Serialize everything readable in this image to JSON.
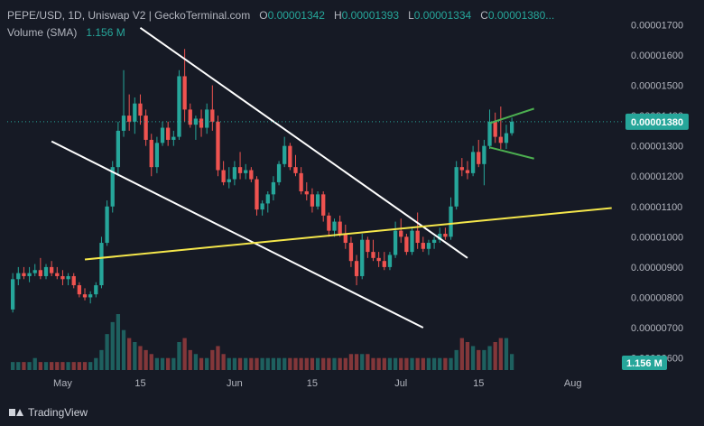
{
  "legend": {
    "title": "PEPE/USD, 1D, Uniswap V2 | GeckoTerminal.com",
    "o_label": "O",
    "o_value": "0.00001342",
    "h_label": "H",
    "h_value": "0.00001393",
    "l_label": "L",
    "l_value": "0.00001334",
    "c_label": "C",
    "c_value": "0.00001380...",
    "volume_label": "Volume (SMA)",
    "volume_value": "1.156 M"
  },
  "footer": {
    "brand": "TradingView"
  },
  "colors": {
    "up": "#26a69a",
    "down": "#ef5350",
    "background": "#161a25",
    "trend_white": "#ffffff",
    "trend_yellow": "#f5e74b",
    "flag_green": "#4caf50"
  },
  "chart_data": {
    "type": "candlestick",
    "title": "PEPE/USD, 1D, Uniswap V2 | GeckoTerminal.com",
    "x_tick_labels": [
      "May",
      "15",
      "Jun",
      "15",
      "Jul",
      "15",
      "Aug"
    ],
    "y_tick_labels": [
      "0.00001700",
      "0.00001600",
      "0.00001500",
      "0.00001400",
      "0.00001300",
      "0.00001200",
      "0.00001100",
      "0.00001000",
      "0.00000900",
      "0.00000800",
      "0.00000700",
      "0.00000600"
    ],
    "ylim": [
      5.6e-06,
      1.74e-05
    ],
    "grid": false,
    "current_price_label": "0.00001380",
    "volume_label": "1.156 M",
    "candles": [
      {
        "date": "2023-04-22",
        "o": 7.6e-06,
        "h": 8.8e-06,
        "l": 7.5e-06,
        "c": 8.6e-06
      },
      {
        "date": "2023-04-23",
        "o": 8.6e-06,
        "h": 9e-06,
        "l": 8.4e-06,
        "c": 8.8e-06
      },
      {
        "date": "2023-04-24",
        "o": 8.8e-06,
        "h": 9e-06,
        "l": 8.6e-06,
        "c": 8.7e-06
      },
      {
        "date": "2023-04-25",
        "o": 8.7e-06,
        "h": 9e-06,
        "l": 8.5e-06,
        "c": 8.8e-06
      },
      {
        "date": "2023-04-26",
        "o": 8.8e-06,
        "h": 9.1e-06,
        "l": 8.7e-06,
        "c": 8.9e-06
      },
      {
        "date": "2023-04-27",
        "o": 8.9e-06,
        "h": 9.3e-06,
        "l": 8.6e-06,
        "c": 8.7e-06
      },
      {
        "date": "2023-04-28",
        "o": 8.7e-06,
        "h": 9.1e-06,
        "l": 8.6e-06,
        "c": 9e-06
      },
      {
        "date": "2023-04-29",
        "o": 9e-06,
        "h": 9.2e-06,
        "l": 8.7e-06,
        "c": 8.8e-06
      },
      {
        "date": "2023-04-30",
        "o": 8.8e-06,
        "h": 9e-06,
        "l": 8.6e-06,
        "c": 8.7e-06
      },
      {
        "date": "2023-05-01",
        "o": 8.7e-06,
        "h": 8.9e-06,
        "l": 8.4e-06,
        "c": 8.6e-06
      },
      {
        "date": "2023-05-02",
        "o": 8.6e-06,
        "h": 8.8e-06,
        "l": 8.4e-06,
        "c": 8.7e-06
      },
      {
        "date": "2023-05-03",
        "o": 8.7e-06,
        "h": 8.8e-06,
        "l": 8.3e-06,
        "c": 8.4e-06
      },
      {
        "date": "2023-05-04",
        "o": 8.4e-06,
        "h": 8.5e-06,
        "l": 8e-06,
        "c": 8.1e-06
      },
      {
        "date": "2023-05-05",
        "o": 8.1e-06,
        "h": 8.3e-06,
        "l": 7.9e-06,
        "c": 8e-06
      },
      {
        "date": "2023-05-06",
        "o": 8e-06,
        "h": 8.2e-06,
        "l": 7.8e-06,
        "c": 8.1e-06
      },
      {
        "date": "2023-05-07",
        "o": 8.1e-06,
        "h": 8.5e-06,
        "l": 8e-06,
        "c": 8.4e-06
      },
      {
        "date": "2023-05-08",
        "o": 8.4e-06,
        "h": 1e-05,
        "l": 8.3e-06,
        "c": 9.8e-06
      },
      {
        "date": "2023-05-09",
        "o": 9.8e-06,
        "h": 1.12e-05,
        "l": 9.7e-06,
        "c": 1.1e-05
      },
      {
        "date": "2023-05-10",
        "o": 1.1e-05,
        "h": 1.25e-05,
        "l": 1.08e-05,
        "c": 1.23e-05
      },
      {
        "date": "2023-05-11",
        "o": 1.23e-05,
        "h": 1.38e-05,
        "l": 1.2e-05,
        "c": 1.35e-05
      },
      {
        "date": "2023-05-12",
        "o": 1.35e-05,
        "h": 1.55e-05,
        "l": 1.33e-05,
        "c": 1.4e-05
      },
      {
        "date": "2023-05-13",
        "o": 1.4e-05,
        "h": 1.47e-05,
        "l": 1.35e-05,
        "c": 1.38e-05
      },
      {
        "date": "2023-05-14",
        "o": 1.38e-05,
        "h": 1.46e-05,
        "l": 1.34e-05,
        "c": 1.44e-05
      },
      {
        "date": "2023-05-15",
        "o": 1.44e-05,
        "h": 1.47e-05,
        "l": 1.37e-05,
        "c": 1.4e-05
      },
      {
        "date": "2023-05-16",
        "o": 1.4e-05,
        "h": 1.42e-05,
        "l": 1.3e-05,
        "c": 1.32e-05
      },
      {
        "date": "2023-05-17",
        "o": 1.32e-05,
        "h": 1.34e-05,
        "l": 1.2e-05,
        "c": 1.23e-05
      },
      {
        "date": "2023-05-18",
        "o": 1.23e-05,
        "h": 1.33e-05,
        "l": 1.21e-05,
        "c": 1.31e-05
      },
      {
        "date": "2023-05-19",
        "o": 1.31e-05,
        "h": 1.38e-05,
        "l": 1.3e-05,
        "c": 1.36e-05
      },
      {
        "date": "2023-05-20",
        "o": 1.36e-05,
        "h": 1.38e-05,
        "l": 1.3e-05,
        "c": 1.32e-05
      },
      {
        "date": "2023-05-21",
        "o": 1.32e-05,
        "h": 1.35e-05,
        "l": 1.3e-05,
        "c": 1.33e-05
      },
      {
        "date": "2023-05-22",
        "o": 1.33e-05,
        "h": 1.55e-05,
        "l": 1.32e-05,
        "c": 1.53e-05
      },
      {
        "date": "2023-05-23",
        "o": 1.53e-05,
        "h": 1.62e-05,
        "l": 1.38e-05,
        "c": 1.42e-05
      },
      {
        "date": "2023-05-24",
        "o": 1.42e-05,
        "h": 1.44e-05,
        "l": 1.36e-05,
        "c": 1.37e-05
      },
      {
        "date": "2023-05-25",
        "o": 1.37e-05,
        "h": 1.4e-05,
        "l": 1.32e-05,
        "c": 1.39e-05
      },
      {
        "date": "2023-05-26",
        "o": 1.39e-05,
        "h": 1.42e-05,
        "l": 1.33e-05,
        "c": 1.36e-05
      },
      {
        "date": "2023-05-27",
        "o": 1.36e-05,
        "h": 1.44e-05,
        "l": 1.34e-05,
        "c": 1.42e-05
      },
      {
        "date": "2023-05-28",
        "o": 1.42e-05,
        "h": 1.5e-05,
        "l": 1.35e-05,
        "c": 1.38e-05
      },
      {
        "date": "2023-05-29",
        "o": 1.38e-05,
        "h": 1.4e-05,
        "l": 1.2e-05,
        "c": 1.22e-05
      },
      {
        "date": "2023-05-30",
        "o": 1.22e-05,
        "h": 1.25e-05,
        "l": 1.17e-05,
        "c": 1.18e-05
      },
      {
        "date": "2023-05-31",
        "o": 1.18e-05,
        "h": 1.23e-05,
        "l": 1.16e-05,
        "c": 1.19e-05
      },
      {
        "date": "2023-06-01",
        "o": 1.19e-05,
        "h": 1.25e-05,
        "l": 1.17e-05,
        "c": 1.23e-05
      },
      {
        "date": "2023-06-02",
        "o": 1.23e-05,
        "h": 1.28e-05,
        "l": 1.19e-05,
        "c": 1.21e-05
      },
      {
        "date": "2023-06-03",
        "o": 1.21e-05,
        "h": 1.24e-05,
        "l": 1.19e-05,
        "c": 1.22e-05
      },
      {
        "date": "2023-06-04",
        "o": 1.22e-05,
        "h": 1.23e-05,
        "l": 1.18e-05,
        "c": 1.19e-05
      },
      {
        "date": "2023-06-05",
        "o": 1.19e-05,
        "h": 1.2e-05,
        "l": 1.07e-05,
        "c": 1.09e-05
      },
      {
        "date": "2023-06-06",
        "o": 1.09e-05,
        "h": 1.12e-05,
        "l": 1.07e-05,
        "c": 1.11e-05
      },
      {
        "date": "2023-06-07",
        "o": 1.11e-05,
        "h": 1.15e-05,
        "l": 1.08e-05,
        "c": 1.14e-05
      },
      {
        "date": "2023-06-08",
        "o": 1.14e-05,
        "h": 1.2e-05,
        "l": 1.12e-05,
        "c": 1.18e-05
      },
      {
        "date": "2023-06-09",
        "o": 1.18e-05,
        "h": 1.25e-05,
        "l": 1.17e-05,
        "c": 1.24e-05
      },
      {
        "date": "2023-06-10",
        "o": 1.24e-05,
        "h": 1.33e-05,
        "l": 1.23e-05,
        "c": 1.3e-05
      },
      {
        "date": "2023-06-11",
        "o": 1.3e-05,
        "h": 1.31e-05,
        "l": 1.22e-05,
        "c": 1.23e-05
      },
      {
        "date": "2023-06-12",
        "o": 1.23e-05,
        "h": 1.27e-05,
        "l": 1.2e-05,
        "c": 1.21e-05
      },
      {
        "date": "2023-06-13",
        "o": 1.21e-05,
        "h": 1.23e-05,
        "l": 1.14e-05,
        "c": 1.15e-05
      },
      {
        "date": "2023-06-14",
        "o": 1.15e-05,
        "h": 1.18e-05,
        "l": 1.12e-05,
        "c": 1.14e-05
      },
      {
        "date": "2023-06-15",
        "o": 1.14e-05,
        "h": 1.16e-05,
        "l": 1.08e-05,
        "c": 1.1e-05
      },
      {
        "date": "2023-06-16",
        "o": 1.1e-05,
        "h": 1.15e-05,
        "l": 1.09e-05,
        "c": 1.14e-05
      },
      {
        "date": "2023-06-17",
        "o": 1.14e-05,
        "h": 1.15e-05,
        "l": 1.05e-05,
        "c": 1.07e-05
      },
      {
        "date": "2023-06-18",
        "o": 1.07e-05,
        "h": 1.08e-05,
        "l": 1e-05,
        "c": 1.02e-05
      },
      {
        "date": "2023-06-19",
        "o": 1.02e-05,
        "h": 1.06e-05,
        "l": 1e-05,
        "c": 1.05e-05
      },
      {
        "date": "2023-06-20",
        "o": 1.05e-05,
        "h": 1.07e-05,
        "l": 1e-05,
        "c": 1.01e-05
      },
      {
        "date": "2023-06-21",
        "o": 1.01e-05,
        "h": 1.04e-05,
        "l": 9.6e-06,
        "c": 9.8e-06
      },
      {
        "date": "2023-06-22",
        "o": 9.8e-06,
        "h": 1e-05,
        "l": 9e-06,
        "c": 9.2e-06
      },
      {
        "date": "2023-06-23",
        "o": 9.2e-06,
        "h": 9.4e-06,
        "l": 8.4e-06,
        "c": 8.7e-06
      },
      {
        "date": "2023-06-24",
        "o": 8.7e-06,
        "h": 1.01e-05,
        "l": 8.6e-06,
        "c": 9.9e-06
      },
      {
        "date": "2023-06-25",
        "o": 9.9e-06,
        "h": 1e-05,
        "l": 9.3e-06,
        "c": 9.5e-06
      },
      {
        "date": "2023-06-26",
        "o": 9.5e-06,
        "h": 9.9e-06,
        "l": 9.2e-06,
        "c": 9.3e-06
      },
      {
        "date": "2023-06-27",
        "o": 9.3e-06,
        "h": 9.5e-06,
        "l": 9e-06,
        "c": 9.2e-06
      },
      {
        "date": "2023-06-28",
        "o": 9.2e-06,
        "h": 9.5e-06,
        "l": 8.9e-06,
        "c": 9e-06
      },
      {
        "date": "2023-06-29",
        "o": 9e-06,
        "h": 9.5e-06,
        "l": 8.9e-06,
        "c": 9.4e-06
      },
      {
        "date": "2023-06-30",
        "o": 9.4e-06,
        "h": 1.05e-05,
        "l": 9.3e-06,
        "c": 1.02e-05
      },
      {
        "date": "2023-07-01",
        "o": 1.02e-05,
        "h": 1.06e-05,
        "l": 9.8e-06,
        "c": 1e-05
      },
      {
        "date": "2023-07-02",
        "o": 1e-05,
        "h": 1.01e-05,
        "l": 9.4e-06,
        "c": 9.5e-06
      },
      {
        "date": "2023-07-03",
        "o": 9.5e-06,
        "h": 1.03e-05,
        "l": 9.4e-06,
        "c": 1.02e-05
      },
      {
        "date": "2023-07-04",
        "o": 1.02e-05,
        "h": 1.08e-05,
        "l": 9.6e-06,
        "c": 9.8e-06
      },
      {
        "date": "2023-07-05",
        "o": 9.8e-06,
        "h": 1e-05,
        "l": 9.5e-06,
        "c": 9.6e-06
      },
      {
        "date": "2023-07-06",
        "o": 9.6e-06,
        "h": 9.9e-06,
        "l": 9.4e-06,
        "c": 9.8e-06
      },
      {
        "date": "2023-07-07",
        "o": 9.8e-06,
        "h": 1e-05,
        "l": 9.6e-06,
        "c": 9.9e-06
      },
      {
        "date": "2023-07-08",
        "o": 9.9e-06,
        "h": 1.03e-05,
        "l": 9.8e-06,
        "c": 1.01e-05
      },
      {
        "date": "2023-07-09",
        "o": 1.01e-05,
        "h": 1.03e-05,
        "l": 9.9e-06,
        "c": 1e-05
      },
      {
        "date": "2023-07-10",
        "o": 1e-05,
        "h": 1.13e-05,
        "l": 9.9e-06,
        "c": 1.1e-05
      },
      {
        "date": "2023-07-11",
        "o": 1.1e-05,
        "h": 1.25e-05,
        "l": 1.09e-05,
        "c": 1.23e-05
      },
      {
        "date": "2023-07-12",
        "o": 1.23e-05,
        "h": 1.26e-05,
        "l": 1.2e-05,
        "c": 1.22e-05
      },
      {
        "date": "2023-07-13",
        "o": 1.22e-05,
        "h": 1.25e-05,
        "l": 1.19e-05,
        "c": 1.21e-05
      },
      {
        "date": "2023-07-14",
        "o": 1.21e-05,
        "h": 1.3e-05,
        "l": 1.2e-05,
        "c": 1.28e-05
      },
      {
        "date": "2023-07-15",
        "o": 1.28e-05,
        "h": 1.32e-05,
        "l": 1.23e-05,
        "c": 1.24e-05
      },
      {
        "date": "2023-07-16",
        "o": 1.24e-05,
        "h": 1.32e-05,
        "l": 1.17e-05,
        "c": 1.3e-05
      },
      {
        "date": "2023-07-17",
        "o": 1.3e-05,
        "h": 1.42e-05,
        "l": 1.29e-05,
        "c": 1.38e-05
      },
      {
        "date": "2023-07-18",
        "o": 1.38e-05,
        "h": 1.41e-05,
        "l": 1.31e-05,
        "c": 1.33e-05
      },
      {
        "date": "2023-07-19",
        "o": 1.33e-05,
        "h": 1.43e-05,
        "l": 1.29e-05,
        "c": 1.31e-05
      },
      {
        "date": "2023-07-20",
        "o": 1.31e-05,
        "h": 1.37e-05,
        "l": 1.29e-05,
        "c": 1.342e-05
      },
      {
        "date": "2023-07-21",
        "o": 1.342e-05,
        "h": 1.393e-05,
        "l": 1.334e-05,
        "c": 1.38e-05
      }
    ],
    "volume": [
      2,
      2,
      2,
      2,
      3,
      2,
      2,
      2,
      2,
      2,
      2,
      2,
      2,
      2,
      2,
      3,
      5,
      9,
      12,
      14,
      10,
      8,
      7,
      6,
      5,
      4,
      3,
      3,
      3,
      3,
      7,
      8,
      5,
      4,
      3,
      3,
      5,
      6,
      4,
      3,
      3,
      3,
      3,
      3,
      3,
      3,
      3,
      3,
      3,
      3,
      3,
      3,
      3,
      3,
      3,
      3,
      3,
      3,
      3,
      3,
      3,
      4,
      4,
      4,
      4,
      3,
      3,
      3,
      3,
      3,
      3,
      3,
      3,
      3,
      3,
      3,
      3,
      3,
      3,
      3,
      5,
      8,
      7,
      6,
      5,
      5,
      6,
      7,
      8,
      8,
      4,
      2
    ],
    "lines": [
      {
        "name": "",
        "color": "white",
        "points": [
          [
            "2023-05-15",
            1.69e-05
          ],
          [
            "2023-07-13",
            9.3e-06
          ]
        ]
      },
      {
        "name": "",
        "color": "white",
        "points": [
          [
            "2023-04-29",
            1.315e-05
          ],
          [
            "2023-07-05",
            7e-06
          ]
        ]
      },
      {
        "name": "",
        "color": "yellow",
        "points": [
          [
            "2023-05-05",
            9.25e-06
          ],
          [
            "2023-08-08",
            1.095e-05
          ]
        ]
      },
      {
        "name": "",
        "color": "green",
        "points": [
          [
            "2023-07-17",
            1.375e-05
          ],
          [
            "2023-07-25",
            1.423e-05
          ]
        ]
      },
      {
        "name": "",
        "color": "green",
        "points": [
          [
            "2023-07-17",
            1.295e-05
          ],
          [
            "2023-07-25",
            1.258e-05
          ]
        ]
      }
    ]
  }
}
